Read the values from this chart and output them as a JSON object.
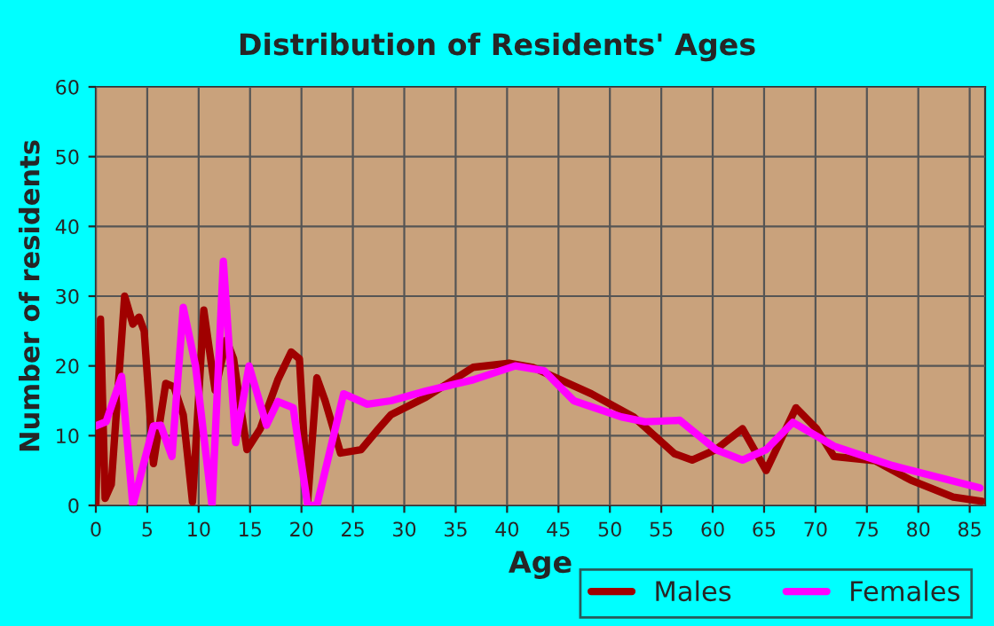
{
  "chart_data": {
    "type": "line",
    "title": "Distribution of Residents' Ages",
    "xlabel": "Age",
    "ylabel": "Number of residents",
    "xlim": [
      0,
      86.5
    ],
    "xticks": [
      0,
      5,
      10,
      15,
      20,
      25,
      30,
      35,
      40,
      45,
      50,
      55,
      60,
      65,
      70,
      75,
      80,
      85
    ],
    "ylim": [
      0,
      60
    ],
    "yticks": [
      0,
      10,
      20,
      30,
      40,
      50,
      60
    ],
    "grid": true,
    "legend": "bottom right",
    "line_style": "solid",
    "marker": "none",
    "series": [
      {
        "name": "Males",
        "color": "#a00000",
        "x": [
          0,
          0.45,
          0.9,
          1.5,
          2.8,
          3.6,
          4.2,
          4.7,
          5.6,
          6.8,
          7.6,
          8.5,
          9.4,
          10.5,
          11.6,
          12.7,
          13.4,
          14.7,
          16,
          17.7,
          19,
          19.8,
          20.6,
          21.5,
          22.3,
          23.8,
          25.8,
          27.5,
          28.7,
          32.1,
          36.7,
          40.2,
          42.5,
          48.2,
          52.3,
          56.3,
          58,
          60.3,
          62.9,
          65.2,
          68.1,
          70.1,
          71.8,
          75.8,
          79.3,
          83.4,
          86.2
        ],
        "values": [
          0,
          26.7,
          1,
          3,
          30,
          26,
          27,
          25,
          6,
          17.5,
          17,
          13,
          0.5,
          28,
          16.5,
          23.7,
          21,
          8,
          11,
          18,
          22,
          21,
          0.5,
          18.3,
          15,
          7.5,
          8,
          11,
          13,
          15.5,
          19.8,
          20.4,
          19.8,
          16,
          12.7,
          7.4,
          6.5,
          8,
          11,
          5,
          14,
          11,
          7,
          6.4,
          3.6,
          1.2,
          0.6
        ]
      },
      {
        "name": "Females",
        "color": "#ff00ff",
        "x": [
          0,
          1,
          2.5,
          3.6,
          5.6,
          6.3,
          7.4,
          8.5,
          9.7,
          11.3,
          12.4,
          13.6,
          14.9,
          16.6,
          17.7,
          19.2,
          20.6,
          21.5,
          24.1,
          26.4,
          28.7,
          32.1,
          36.7,
          40.8,
          43.6,
          46.5,
          51.1,
          53.4,
          56.8,
          60.3,
          62.9,
          65.2,
          67.8,
          71.8,
          77.5,
          86
        ],
        "values": [
          11.4,
          12,
          18.5,
          0,
          11.4,
          11.5,
          7,
          28.4,
          20,
          0,
          35,
          9,
          20,
          11.5,
          14.9,
          14,
          0,
          0,
          16,
          14.5,
          15,
          16.4,
          18,
          20,
          19.3,
          15,
          12.7,
          12,
          12.2,
          8,
          6.5,
          8,
          11.9,
          8.5,
          5.7,
          2.5
        ]
      }
    ]
  }
}
